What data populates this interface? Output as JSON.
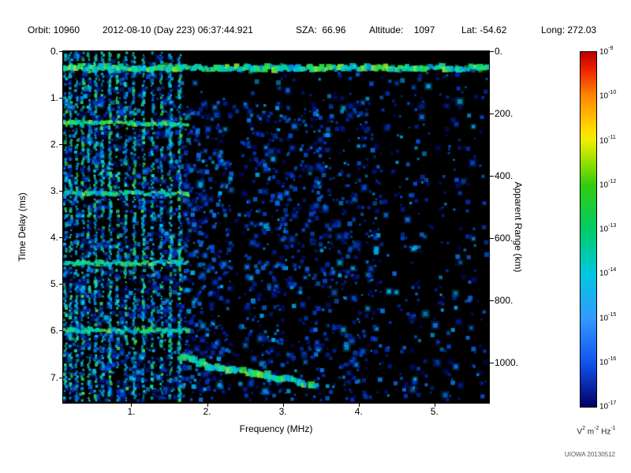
{
  "header": {
    "orbit": "Orbit: 10960",
    "datetime": "2012-08-10 (Day 223) 06:37:44.921",
    "sza": "SZA:  66.96",
    "altitude": "Altitude:    1097",
    "lat": "Lat: -54.62",
    "long": "Long: 272.03"
  },
  "watermark": "UIOWA 20130512",
  "chart_data": {
    "type": "heatmap",
    "title": "",
    "xlabel": "Frequency (MHz)",
    "ylabel_left": "Time Delay (ms)",
    "ylabel_right": "Apparent Range (km)",
    "xlim": [
      0.1,
      5.72
    ],
    "x_ticks": [
      {
        "value": 1,
        "label": "1."
      },
      {
        "value": 2,
        "label": "2."
      },
      {
        "value": 3,
        "label": "3."
      },
      {
        "value": 4,
        "label": "4."
      },
      {
        "value": 5,
        "label": "5."
      }
    ],
    "ylim": [
      0,
      7.55
    ],
    "y_ticks_left": [
      {
        "value": 0,
        "label": "0."
      },
      {
        "value": 1,
        "label": "1."
      },
      {
        "value": 2,
        "label": "2."
      },
      {
        "value": 3,
        "label": "3."
      },
      {
        "value": 4,
        "label": "4."
      },
      {
        "value": 5,
        "label": "5."
      },
      {
        "value": 6,
        "label": "6."
      },
      {
        "value": 7,
        "label": "7."
      }
    ],
    "right_lim": [
      0,
      1130
    ],
    "y_ticks_right": [
      {
        "value": 0,
        "label": "0."
      },
      {
        "value": 200,
        "label": "200."
      },
      {
        "value": 400,
        "label": "400."
      },
      {
        "value": 600,
        "label": "600."
      },
      {
        "value": 800,
        "label": "800."
      },
      {
        "value": 1000,
        "label": "1000."
      }
    ],
    "colorbar": {
      "scale": "log",
      "tick_exponents": [
        -9,
        -10,
        -11,
        -12,
        -13,
        -14,
        -15,
        -16,
        -17
      ],
      "unit_text": "V^2 m^-2 Hz^-1",
      "unit_parts": [
        {
          "base": "V",
          "sup": "2"
        },
        {
          "base": "m",
          "sup": "-2"
        },
        {
          "base": "Hz",
          "sup": "-1"
        }
      ],
      "gradient": [
        {
          "pos": 0.0,
          "color": "#bb0000"
        },
        {
          "pos": 0.05,
          "color": "#ee2200"
        },
        {
          "pos": 0.125,
          "color": "#ff8800"
        },
        {
          "pos": 0.22,
          "color": "#ffdd00"
        },
        {
          "pos": 0.25,
          "color": "#eeee00"
        },
        {
          "pos": 0.32,
          "color": "#88dd00"
        },
        {
          "pos": 0.375,
          "color": "#33cc11"
        },
        {
          "pos": 0.5,
          "color": "#00cc66"
        },
        {
          "pos": 0.625,
          "color": "#00c8e0"
        },
        {
          "pos": 0.75,
          "color": "#339aff"
        },
        {
          "pos": 0.875,
          "color": "#1155ee"
        },
        {
          "pos": 1.0,
          "color": "#000066"
        }
      ]
    },
    "features": {
      "background": "#000000",
      "noise_palette": [
        "#000c66",
        "#001d99",
        "#0030bb",
        "#0049d4",
        "#0b6be0",
        "#00a6e8"
      ],
      "stripe_palette": [
        "#00b4e4",
        "#00cdd6",
        "#19d9a0",
        "#35dd55",
        "#0090e8"
      ],
      "bright_palette": [
        "#2ee24a",
        "#00e08c",
        "#8aea30",
        "#00d8c0"
      ],
      "surface_band_ms": [
        0.22,
        0.5
      ],
      "plasma_line_freqs": [
        0.13,
        0.2,
        0.28,
        0.36,
        0.44,
        0.53,
        0.62,
        0.72,
        0.82,
        0.93,
        1.04,
        1.16,
        1.28,
        1.4,
        1.52,
        1.64
      ],
      "cyclotron_band_ms": [
        1.55,
        3.05,
        4.55,
        6.0
      ],
      "cyclotron_max_freq": 1.75,
      "echo_trace": [
        [
          1.7,
          6.55
        ],
        [
          2.0,
          6.75
        ],
        [
          2.3,
          6.85
        ],
        [
          2.6,
          6.9
        ],
        [
          2.9,
          7.0
        ],
        [
          3.2,
          7.1
        ],
        [
          3.45,
          7.2
        ]
      ],
      "dark_column_freq": [
        2.32,
        2.5
      ],
      "noise_regions": [
        {
          "f": [
            0.1,
            1.7
          ],
          "td": [
            0.1,
            7.5
          ],
          "density": 0.55,
          "bias": 1
        },
        {
          "f": [
            1.7,
            4.3
          ],
          "td": [
            1.1,
            7.5
          ],
          "density": 0.42,
          "bias": 1.25
        },
        {
          "f": [
            1.7,
            4.3
          ],
          "td": [
            0.45,
            1.1
          ],
          "density": 0.1,
          "bias": 1
        },
        {
          "f": [
            4.3,
            5.7
          ],
          "td": [
            0.45,
            7.5
          ],
          "density": 0.14,
          "bias": 1
        }
      ]
    }
  }
}
